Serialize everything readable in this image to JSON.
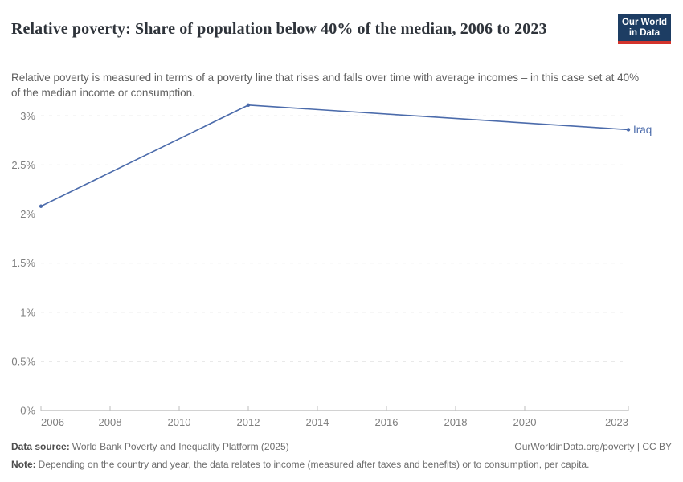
{
  "header": {
    "title": "Relative poverty: Share of population below 40% of the median, 2006 to 2023",
    "subtitle": "Relative poverty is measured in terms of a poverty line that rises and falls over time with average incomes – in this case set at 40% of the median income or consumption.",
    "logo": {
      "line1": "Our World",
      "line2": "in Data",
      "bg_color": "#1d3d63",
      "accent_color": "#d3342c"
    }
  },
  "chart_data": {
    "type": "line",
    "title": "Relative poverty: Share of population below 40% of the median, 2006 to 2023",
    "xlabel": "",
    "ylabel": "",
    "xlim": [
      2006,
      2023
    ],
    "ylim": [
      0,
      3.3
    ],
    "grid": "horizontal-dashed",
    "legend_position": "end-of-line-label",
    "x_ticks": [
      2006,
      2008,
      2010,
      2012,
      2014,
      2016,
      2018,
      2020,
      2023
    ],
    "y_ticks": [
      0,
      0.5,
      1,
      1.5,
      2,
      2.5,
      3
    ],
    "y_tick_labels": [
      "0%",
      "0.5%",
      "1%",
      "1.5%",
      "2%",
      "2.5%",
      "3%"
    ],
    "series": [
      {
        "name": "Iraq",
        "color": "#4b6bab",
        "x": [
          2006,
          2012,
          2023
        ],
        "values": [
          2.08,
          3.11,
          2.86
        ]
      }
    ]
  },
  "colors": {
    "axis_line": "#a5a5a5",
    "axis_tick": "#bdbdbd",
    "gridline": "#dcdcdc",
    "tick_label": "#7e7e7e"
  },
  "footer": {
    "datasource_label": "Data source:",
    "datasource_value": "World Bank Poverty and Inequality Platform (2025)",
    "rights": "OurWorldinData.org/poverty | CC BY",
    "note_label": "Note:",
    "note_value": "Depending on the country and year, the data relates to income (measured after taxes and benefits) or to consumption, per capita."
  }
}
